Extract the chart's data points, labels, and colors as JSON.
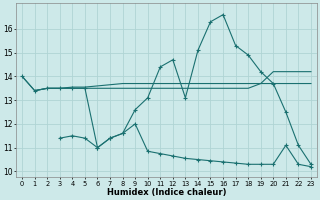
{
  "xlabel": "Humidex (Indice chaleur)",
  "bg_color": "#cde9e9",
  "grid_color": "#b0d4d4",
  "line_color": "#1a7070",
  "xlim": [
    -0.5,
    23.5
  ],
  "ylim": [
    9.75,
    17.1
  ],
  "yticks": [
    10,
    11,
    12,
    13,
    14,
    15,
    16
  ],
  "xticks": [
    0,
    1,
    2,
    3,
    4,
    5,
    6,
    7,
    8,
    9,
    10,
    11,
    12,
    13,
    14,
    15,
    16,
    17,
    18,
    19,
    20,
    21,
    22,
    23
  ],
  "main_x": [
    0,
    1,
    2,
    3,
    4,
    5,
    6,
    7,
    8,
    9,
    10,
    11,
    12,
    13,
    14,
    15,
    16,
    17,
    18,
    19,
    20,
    21,
    22,
    23
  ],
  "main_y": [
    14.0,
    13.4,
    13.5,
    13.5,
    13.5,
    13.5,
    11.0,
    11.4,
    11.6,
    12.6,
    13.1,
    14.4,
    14.7,
    13.1,
    15.1,
    16.3,
    16.6,
    15.3,
    14.9,
    14.2,
    13.7,
    12.5,
    11.1,
    10.3
  ],
  "upper_x": [
    0,
    1,
    2,
    3,
    4,
    5,
    6,
    7,
    8,
    9,
    10,
    11,
    12,
    13,
    14,
    15,
    16,
    17,
    18,
    19,
    20,
    21,
    22,
    23
  ],
  "upper_y": [
    14.0,
    13.4,
    13.5,
    13.5,
    13.55,
    13.55,
    13.6,
    13.65,
    13.7,
    13.7,
    13.7,
    13.7,
    13.7,
    13.7,
    13.7,
    13.7,
    13.7,
    13.7,
    13.7,
    13.7,
    14.2,
    14.2,
    14.2,
    14.2
  ],
  "mid_x": [
    1,
    2,
    3,
    4,
    5,
    6,
    7,
    8,
    9,
    10,
    11,
    12,
    13,
    14,
    15,
    16,
    17,
    18,
    19,
    20,
    21,
    22,
    23
  ],
  "mid_y": [
    13.4,
    13.5,
    13.5,
    13.5,
    13.5,
    13.5,
    13.5,
    13.5,
    13.5,
    13.5,
    13.5,
    13.5,
    13.5,
    13.5,
    13.5,
    13.5,
    13.5,
    13.5,
    13.7,
    13.7,
    13.7,
    13.7,
    13.7
  ],
  "lower_x": [
    3,
    4,
    5,
    6,
    7,
    8,
    9,
    10,
    11,
    12,
    13,
    14,
    15,
    16,
    17,
    18,
    19,
    20,
    21,
    22,
    23
  ],
  "lower_y": [
    11.4,
    11.5,
    11.4,
    11.0,
    11.4,
    11.6,
    12.0,
    10.85,
    10.75,
    10.65,
    10.55,
    10.5,
    10.45,
    10.4,
    10.35,
    10.3,
    10.3,
    10.3,
    11.1,
    10.3,
    10.2
  ]
}
